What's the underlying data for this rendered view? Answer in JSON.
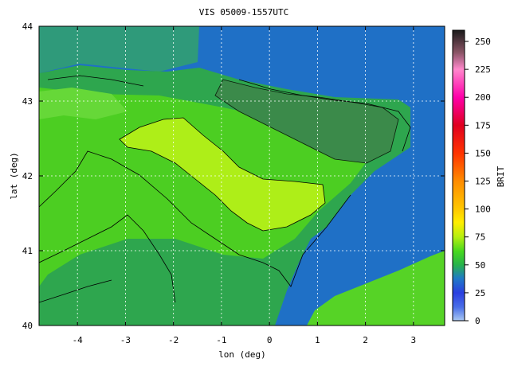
{
  "chart_data": {
    "type": "heatmap",
    "title": "VIS 05009-1557UTC",
    "xlabel": "lon (deg)",
    "ylabel": "lat (deg)",
    "xlim": [
      -4.8,
      3.65
    ],
    "ylim": [
      40,
      44
    ],
    "x_ticks": [
      -4,
      -3,
      -2,
      -1,
      0,
      1,
      2,
      3
    ],
    "y_ticks": [
      40,
      41,
      42,
      43,
      44
    ],
    "grid": true,
    "colorbar": {
      "label": "BRIT",
      "range": [
        0,
        260
      ],
      "ticks": [
        0,
        25,
        50,
        75,
        100,
        125,
        150,
        175,
        200,
        225,
        250
      ],
      "stops": [
        {
          "value": 0,
          "color": "#a9c8f2"
        },
        {
          "value": 12,
          "color": "#4a6fe8"
        },
        {
          "value": 25,
          "color": "#2a3fe0"
        },
        {
          "value": 38,
          "color": "#1f7bc6"
        },
        {
          "value": 50,
          "color": "#27b34b"
        },
        {
          "value": 62,
          "color": "#46d81f"
        },
        {
          "value": 75,
          "color": "#b6ef10"
        },
        {
          "value": 88,
          "color": "#ffee00"
        },
        {
          "value": 100,
          "color": "#ffc800"
        },
        {
          "value": 125,
          "color": "#ff8c00"
        },
        {
          "value": 150,
          "color": "#ff3300"
        },
        {
          "value": 175,
          "color": "#e00020"
        },
        {
          "value": 200,
          "color": "#ff00aa"
        },
        {
          "value": 225,
          "color": "#ff88cc"
        },
        {
          "value": 240,
          "color": "#8a5566"
        },
        {
          "value": 260,
          "color": "#1a1a1a"
        }
      ]
    }
  }
}
